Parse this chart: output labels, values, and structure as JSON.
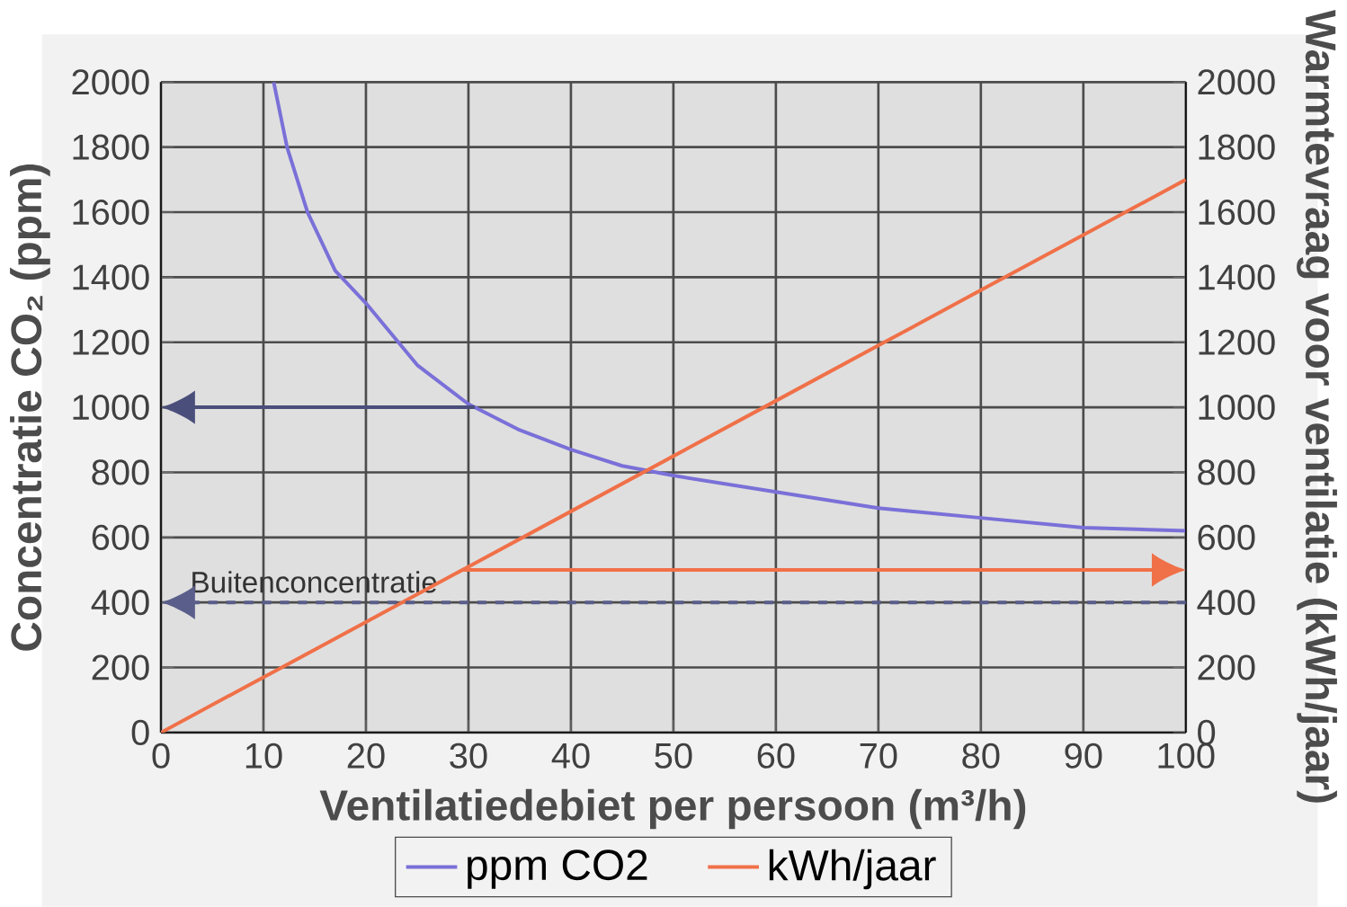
{
  "chart_data": {
    "type": "line",
    "xlabel": "Ventilatiedebiet per persoon (m³/h)",
    "ylabel": "Concentratie CO₂ (ppm)",
    "y2label": "Warmtevraag voor ventilatie (kWh/jaar)",
    "xlim": [
      0,
      100
    ],
    "xticks": [
      0,
      10,
      20,
      30,
      40,
      50,
      60,
      70,
      80,
      90,
      100
    ],
    "ylim": [
      0,
      2000
    ],
    "yticks": [
      0,
      200,
      400,
      600,
      800,
      1000,
      1200,
      1400,
      1600,
      1800,
      2000
    ],
    "y2lim": [
      0,
      2000
    ],
    "y2ticks": [
      0,
      200,
      400,
      600,
      800,
      1000,
      1200,
      1400,
      1600,
      1800,
      2000
    ],
    "grid": true,
    "legend": "bottom",
    "marker": "none",
    "line_style": "solid",
    "series": [
      {
        "name": "ppm CO2",
        "color": "#7a70d8",
        "x": [
          11,
          12.3,
          14.3,
          17,
          20,
          25,
          30,
          35,
          40,
          45,
          50,
          60,
          70,
          80,
          90,
          100
        ],
        "values": [
          2000,
          1800,
          1600,
          1420,
          1320,
          1130,
          1010,
          930,
          870,
          820,
          790,
          740,
          690,
          660,
          630,
          620
        ]
      },
      {
        "name": "kWh/jaar",
        "color": "#f07048",
        "axis": "y2",
        "x": [
          0,
          10,
          20,
          30,
          40,
          50,
          60,
          70,
          80,
          90,
          100
        ],
        "values": [
          0,
          170,
          340,
          510,
          680,
          850,
          1020,
          1190,
          1360,
          1530,
          1700
        ]
      }
    ],
    "ref_lines": [
      {
        "axis": "y",
        "value": 1000,
        "color": "#4a4e7a",
        "line_style": "solid"
      },
      {
        "axis": "y2",
        "value": 500,
        "color": "#f07048",
        "line_style": "solid"
      },
      {
        "axis": "y",
        "value": 400,
        "label": "Buitenconcentratie",
        "color": "#5a5e8a",
        "line_style": "dashed"
      }
    ]
  }
}
